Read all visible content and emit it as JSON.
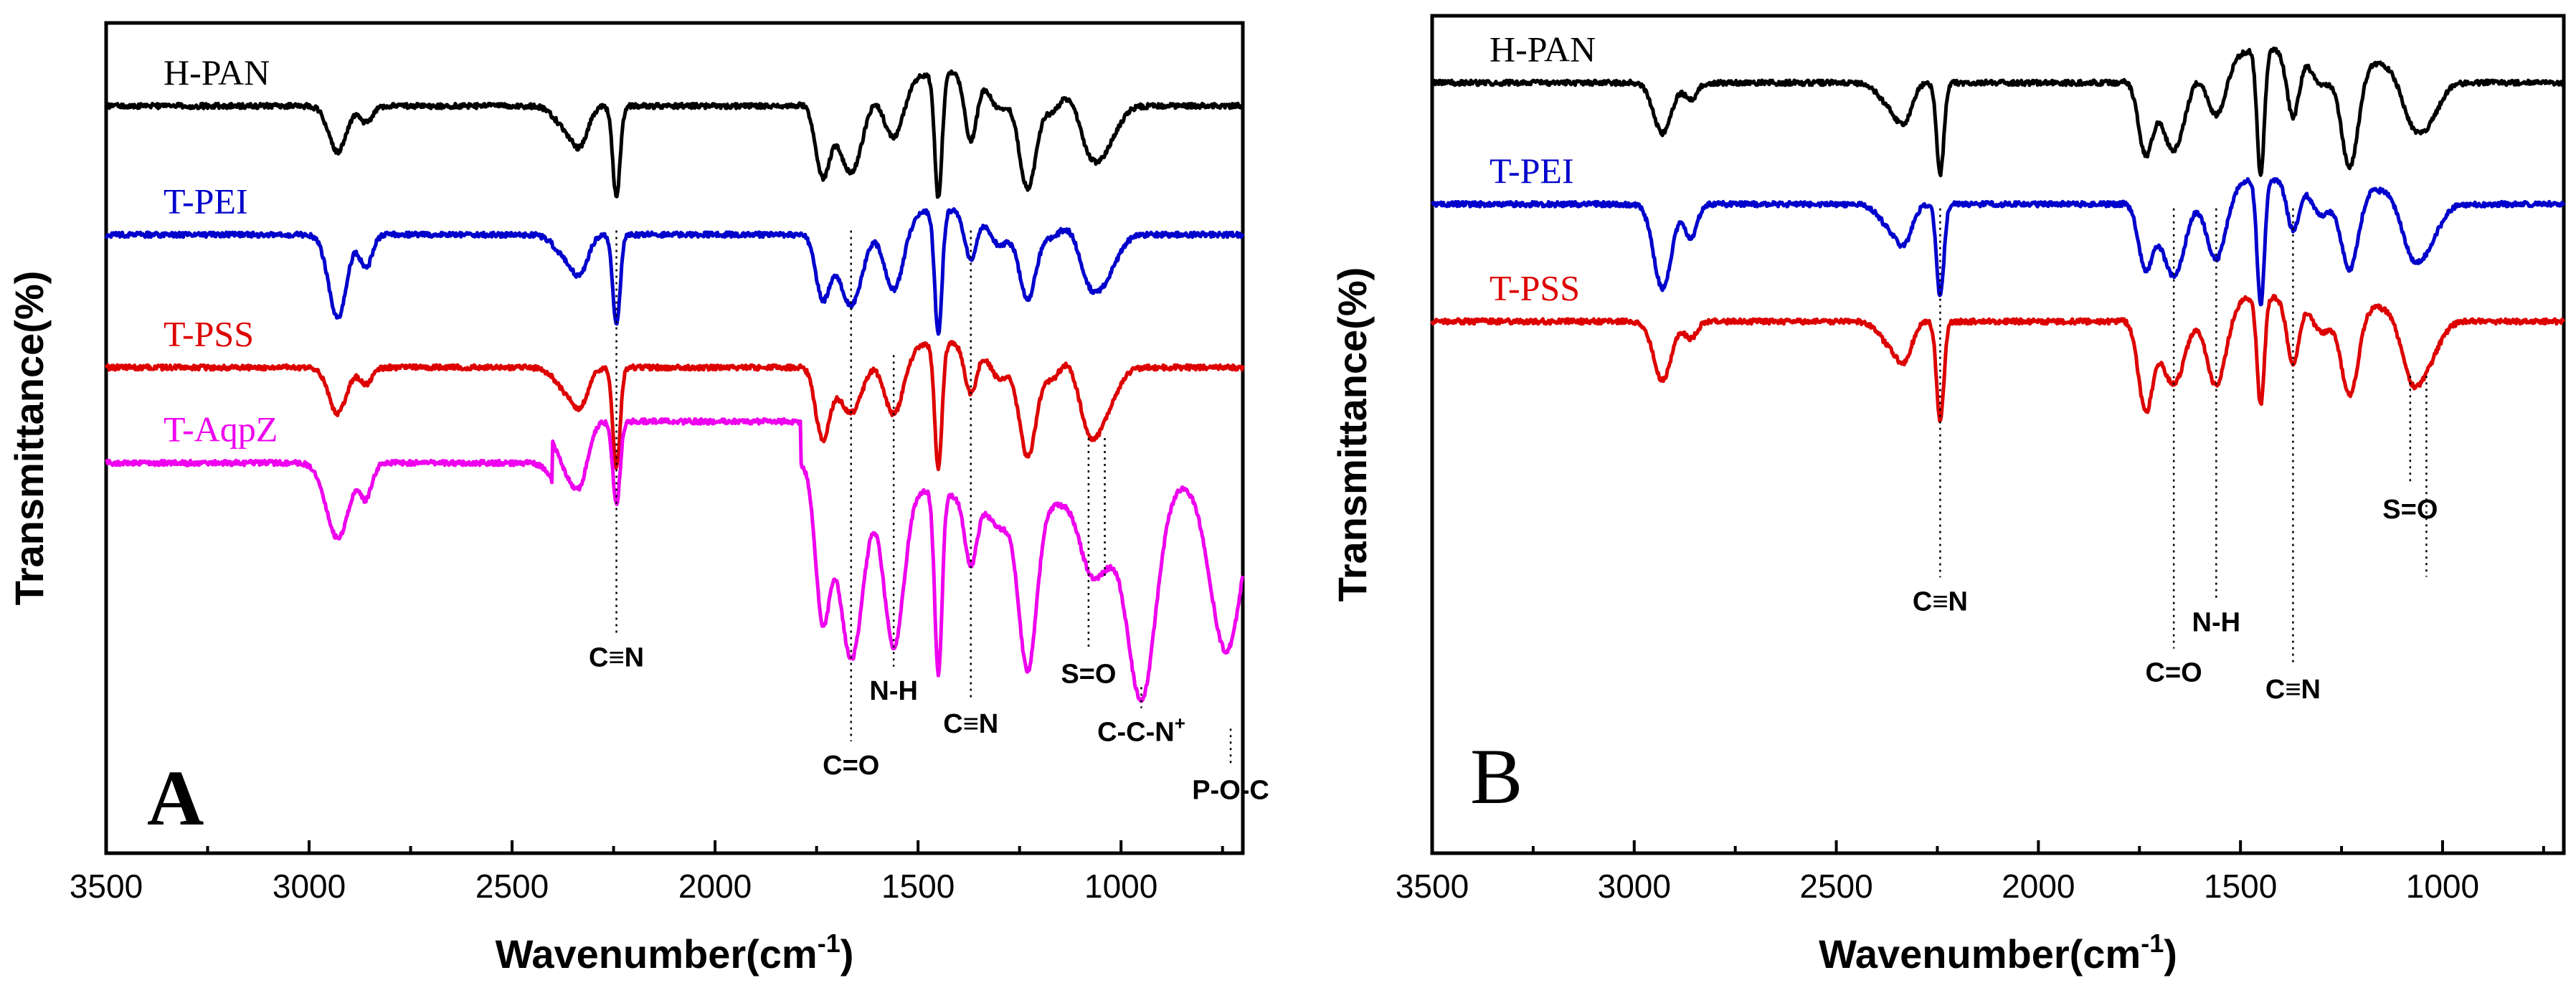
{
  "chart_data": [
    {
      "panel": "A",
      "type": "line",
      "xlabel": "Wavenumber(cm",
      "xlabel_sup": "-1",
      "xlabel_end": ")",
      "ylabel": "Transmittance(%)",
      "xlim": [
        3500,
        700
      ],
      "x_ticks": [
        3500,
        3000,
        2500,
        2000,
        1500,
        1000
      ],
      "x_tick_labels": [
        "3500",
        "3000",
        "2500",
        "2000",
        "1500",
        "1000"
      ],
      "y_ticks_shown": false,
      "series": [
        {
          "name": "H-PAN",
          "color": "#000000",
          "baseline": 0.9,
          "peaks": [
            [
              2930,
              0.055,
              22
            ],
            [
              2860,
              0.02,
              15
            ],
            [
              2360,
              0.03,
              30
            ],
            [
              2330,
              0.03,
              18
            ],
            [
              2243,
              0.11,
              9
            ],
            [
              1735,
              0.09,
              18
            ],
            [
              1665,
              0.1,
              30
            ],
            [
              1560,
              0.07,
              25
            ],
            [
              1450,
              0.15,
              9
            ],
            [
              1370,
              0.08,
              15
            ],
            [
              1300,
              0.04,
              25
            ],
            [
              1230,
              0.13,
              22
            ],
            [
              1170,
              0.03,
              20
            ],
            [
              1080,
              0.05,
              25
            ],
            [
              1040,
              0.05,
              30
            ]
          ],
          "humps": [
            [
              1800,
              1000,
              0.04
            ]
          ]
        },
        {
          "name": "T-PEI",
          "color": "#0000cc",
          "baseline": 0.745,
          "peaks": [
            [
              2930,
              0.1,
              22
            ],
            [
              2860,
              0.04,
              15
            ],
            [
              2360,
              0.03,
              30
            ],
            [
              2330,
              0.03,
              18
            ],
            [
              2243,
              0.11,
              9
            ],
            [
              1735,
              0.08,
              18
            ],
            [
              1665,
              0.1,
              30
            ],
            [
              1560,
              0.09,
              25
            ],
            [
              1450,
              0.15,
              9
            ],
            [
              1370,
              0.06,
              15
            ],
            [
              1300,
              0.04,
              25
            ],
            [
              1230,
              0.1,
              22
            ],
            [
              1170,
              0.02,
              20
            ],
            [
              1080,
              0.05,
              25
            ],
            [
              1040,
              0.05,
              30
            ]
          ],
          "humps": [
            [
              1800,
              1000,
              0.03
            ]
          ]
        },
        {
          "name": "T-PSS",
          "color": "#dd0000",
          "baseline": 0.585,
          "peaks": [
            [
              2930,
              0.055,
              22
            ],
            [
              2860,
              0.02,
              15
            ],
            [
              2360,
              0.03,
              30
            ],
            [
              2330,
              0.03,
              18
            ],
            [
              2243,
              0.12,
              9
            ],
            [
              1735,
              0.09,
              18
            ],
            [
              1665,
              0.07,
              30
            ],
            [
              1560,
              0.08,
              25
            ],
            [
              1450,
              0.15,
              9
            ],
            [
              1370,
              0.06,
              15
            ],
            [
              1300,
              0.04,
              25
            ],
            [
              1230,
              0.13,
              22
            ],
            [
              1170,
              0.03,
              20
            ],
            [
              1080,
              0.07,
              25
            ],
            [
              1040,
              0.05,
              30
            ]
          ],
          "humps": [
            [
              1800,
              1000,
              0.03
            ]
          ]
        },
        {
          "name": "T-AqpZ",
          "color": "#ee00ee",
          "baseline": 0.47,
          "plateau": [
            2400,
            1790,
            0.05
          ],
          "peaks": [
            [
              2930,
              0.09,
              28
            ],
            [
              2860,
              0.04,
              15
            ],
            [
              2360,
              0.06,
              30
            ],
            [
              2330,
              0.04,
              18
            ],
            [
              2243,
              0.1,
              9
            ],
            [
              1735,
              0.18,
              18
            ],
            [
              1665,
              0.23,
              30
            ],
            [
              1560,
              0.2,
              25
            ],
            [
              1450,
              0.22,
              9
            ],
            [
              1370,
              0.08,
              15
            ],
            [
              1300,
              0.03,
              25
            ],
            [
              1230,
              0.2,
              22
            ],
            [
              1080,
              0.06,
              25
            ],
            [
              1040,
              0.06,
              30
            ],
            [
              950,
              0.25,
              35
            ],
            [
              740,
              0.22,
              40
            ]
          ],
          "humps": [
            [
              1700,
              700,
              -0.05
            ]
          ]
        }
      ],
      "annotations": [
        {
          "label": "C≡N",
          "x": 2243,
          "y_top": 0.75,
          "y_label": 0.225
        },
        {
          "label": "C=O",
          "x": 1665,
          "y_top": 0.75,
          "y_label": 0.095
        },
        {
          "label": "N-H",
          "x": 1560,
          "y_top": 0.6,
          "y_label": 0.185
        },
        {
          "label": "C≡N",
          "x": 1370,
          "y_top": 0.75,
          "y_label": 0.145
        },
        {
          "label": "S=O",
          "x": 1080,
          "y_top": 0.5,
          "y_label": 0.205
        },
        {
          "label": "S=O",
          "x": 1040,
          "y_top": 0.5,
          "y_label": null
        },
        {
          "label": "C-C-N",
          "sup": "+",
          "x": 950,
          "y_top": 0.2,
          "y_label": 0.135
        },
        {
          "label": "P-O-C",
          "x": 730,
          "y_top": 0.15,
          "y_label": 0.065
        }
      ],
      "panel_letter": "A"
    },
    {
      "panel": "B",
      "type": "line",
      "xlabel": "Wavenumber(cm",
      "xlabel_sup": "-1",
      "xlabel_end": ")",
      "ylabel": "Transmittance(%)",
      "xlim": [
        3500,
        700
      ],
      "x_ticks": [
        3500,
        3000,
        2500,
        2000,
        1500,
        1000
      ],
      "x_tick_labels": [
        "3500",
        "3000",
        "2500",
        "2000",
        "1500",
        "1000"
      ],
      "y_ticks_shown": false,
      "series": [
        {
          "name": "H-PAN",
          "color": "#000000",
          "baseline": 0.92,
          "peaks": [
            [
              2930,
              0.06,
              22
            ],
            [
              2860,
              0.02,
              15
            ],
            [
              2360,
              0.03,
              30
            ],
            [
              2330,
              0.03,
              18
            ],
            [
              2243,
              0.11,
              9
            ],
            [
              1735,
              0.09,
              18
            ],
            [
              1665,
              0.1,
              30
            ],
            [
              1560,
              0.07,
              25
            ],
            [
              1450,
              0.15,
              9
            ],
            [
              1370,
              0.08,
              15
            ],
            [
              1300,
              0.04,
              25
            ],
            [
              1230,
              0.13,
              22
            ],
            [
              1080,
              0.04,
              25
            ],
            [
              1040,
              0.05,
              30
            ]
          ],
          "humps": [
            [
              1800,
              1000,
              0.04
            ]
          ]
        },
        {
          "name": "T-PEI",
          "color": "#0000cc",
          "baseline": 0.775,
          "peaks": [
            [
              2930,
              0.1,
              22
            ],
            [
              2860,
              0.04,
              15
            ],
            [
              2360,
              0.03,
              30
            ],
            [
              2330,
              0.03,
              18
            ],
            [
              2243,
              0.11,
              9
            ],
            [
              1735,
              0.08,
              18
            ],
            [
              1665,
              0.1,
              30
            ],
            [
              1560,
              0.09,
              25
            ],
            [
              1450,
              0.15,
              9
            ],
            [
              1370,
              0.06,
              15
            ],
            [
              1300,
              0.04,
              25
            ],
            [
              1230,
              0.1,
              22
            ],
            [
              1080,
              0.05,
              25
            ],
            [
              1040,
              0.05,
              30
            ]
          ],
          "humps": [
            [
              1800,
              1000,
              0.03
            ]
          ]
        },
        {
          "name": "T-PSS",
          "color": "#dd0000",
          "baseline": 0.635,
          "peaks": [
            [
              2930,
              0.07,
              22
            ],
            [
              2860,
              0.02,
              15
            ],
            [
              2360,
              0.03,
              30
            ],
            [
              2330,
              0.03,
              18
            ],
            [
              2243,
              0.12,
              9
            ],
            [
              1735,
              0.11,
              18
            ],
            [
              1665,
              0.09,
              30
            ],
            [
              1560,
              0.1,
              25
            ],
            [
              1450,
              0.13,
              9
            ],
            [
              1370,
              0.08,
              15
            ],
            [
              1300,
              0.04,
              25
            ],
            [
              1230,
              0.11,
              22
            ],
            [
              1080,
              0.06,
              25
            ],
            [
              1040,
              0.05,
              30
            ]
          ],
          "humps": [
            [
              1800,
              1000,
              0.03
            ]
          ]
        }
      ],
      "annotations": [
        {
          "label": "C≡N",
          "x": 2243,
          "y_top": 0.77,
          "y_label": 0.29
        },
        {
          "label": "C=O",
          "x": 1665,
          "y_top": 0.77,
          "y_label": 0.205
        },
        {
          "label": "N-H",
          "x": 1560,
          "y_top": 0.77,
          "y_label": 0.265
        },
        {
          "label": "C≡N",
          "x": 1370,
          "y_top": 0.77,
          "y_label": 0.185
        },
        {
          "label": "S=O",
          "x": 1080,
          "y_top": 0.57,
          "y_label": 0.4
        },
        {
          "label": "S=O",
          "x": 1040,
          "y_top": 0.57,
          "y_label": null
        }
      ],
      "panel_letter": "B"
    }
  ]
}
